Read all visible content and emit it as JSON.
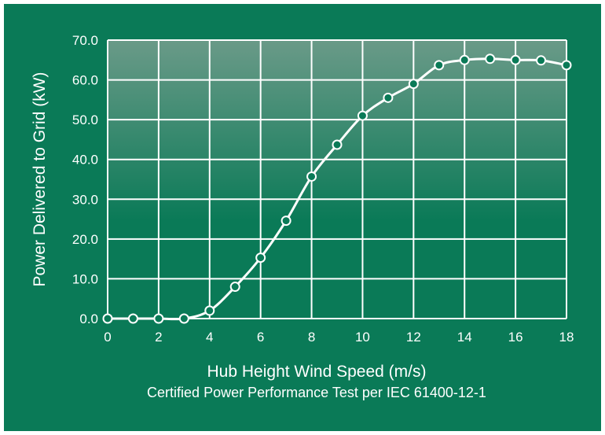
{
  "chart_data": {
    "type": "line",
    "title": "",
    "xlabel": "Hub Height Wind Speed (m/s)",
    "subtitle": "Certified Power Performance Test per IEC 61400-12-1",
    "ylabel": "Power Delivered to Grid (kW)",
    "xlim": [
      0,
      18
    ],
    "ylim": [
      0,
      70
    ],
    "x_ticks": [
      0,
      2,
      4,
      6,
      8,
      10,
      12,
      14,
      16,
      18
    ],
    "x_tick_labels": [
      "0",
      "2",
      "4",
      "6",
      "8",
      "10",
      "12",
      "14",
      "16",
      "18"
    ],
    "y_ticks": [
      0,
      10,
      20,
      30,
      40,
      50,
      60,
      70
    ],
    "y_tick_labels": [
      "0.0",
      "10.0",
      "20.0",
      "30.0",
      "40.0",
      "50.0",
      "60.0",
      "70.0"
    ],
    "grid": true,
    "series": [
      {
        "x": [
          0,
          1,
          2,
          3,
          4,
          5,
          6,
          7,
          8,
          9,
          10,
          11,
          12,
          13,
          14,
          15,
          16,
          17,
          18
        ],
        "values": [
          0,
          0,
          0,
          0,
          2,
          8,
          15.3,
          24.6,
          35.7,
          43.7,
          51,
          55.5,
          59,
          63.7,
          65,
          65.3,
          65,
          64.9,
          63.7
        ]
      }
    ],
    "colors": {
      "background": "#0a7a57",
      "plot_top": "#6a9a88",
      "plot_bottom": "#0a7a57",
      "line": "#ffffff",
      "marker_fill": "#0a7a57",
      "grid": "#ffffff"
    }
  }
}
